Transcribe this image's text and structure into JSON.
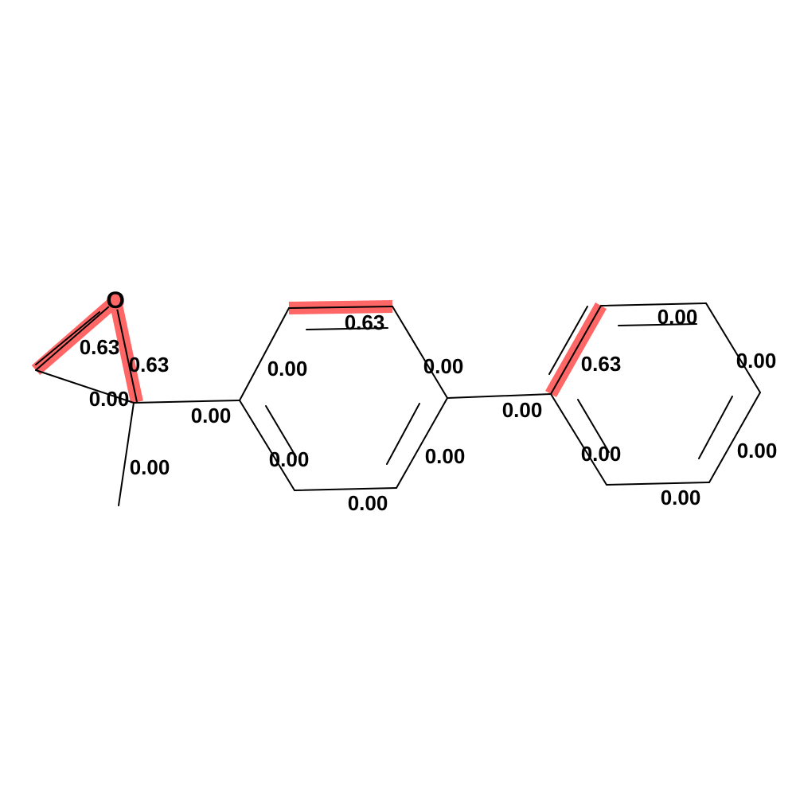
{
  "molecule": {
    "atom_labels": {
      "oxygen": "O"
    },
    "highlight_color": "#ff6666",
    "bond_color": "#000000",
    "bonds": [
      {
        "id": "epoxide-o-ch2",
        "weight": "0.63",
        "highlighted": true
      },
      {
        "id": "epoxide-o-c",
        "weight": "0.63",
        "highlighted": true
      },
      {
        "id": "epoxide-ch2-c",
        "weight": "0.00",
        "highlighted": false
      },
      {
        "id": "c-ring1",
        "weight": "0.00",
        "highlighted": false
      },
      {
        "id": "c-methyl",
        "weight": "0.00",
        "highlighted": false
      },
      {
        "id": "ring1-top",
        "weight": "0.63",
        "highlighted": true
      },
      {
        "id": "ring1-upper-left",
        "weight": "0.00",
        "highlighted": false
      },
      {
        "id": "ring1-upper-right",
        "weight": "0.00",
        "highlighted": false
      },
      {
        "id": "ring1-lower-left",
        "weight": "0.00",
        "highlighted": false
      },
      {
        "id": "ring1-lower-right",
        "weight": "0.00",
        "highlighted": false
      },
      {
        "id": "ring1-bottom",
        "weight": "0.00",
        "highlighted": false
      },
      {
        "id": "ring1-ring2",
        "weight": "0.00",
        "highlighted": false
      },
      {
        "id": "ring2-upper-left",
        "weight": "0.63",
        "highlighted": true
      },
      {
        "id": "ring2-top",
        "weight": "0.00",
        "highlighted": false
      },
      {
        "id": "ring2-upper-right",
        "weight": "0.00",
        "highlighted": false
      },
      {
        "id": "ring2-lower-right",
        "weight": "0.00",
        "highlighted": false
      },
      {
        "id": "ring2-bottom",
        "weight": "0.00",
        "highlighted": false
      },
      {
        "id": "ring2-lower-left",
        "weight": "0.00",
        "highlighted": false
      }
    ]
  }
}
